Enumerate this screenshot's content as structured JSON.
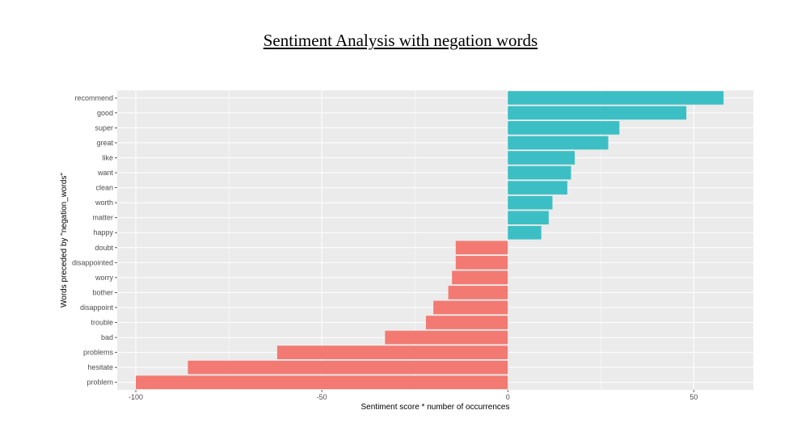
{
  "title": "Sentiment Analysis with negation words",
  "chart_data": {
    "type": "bar",
    "orientation": "horizontal",
    "title": "Sentiment Analysis with negation words",
    "xlabel": "Sentiment score * number of occurrences",
    "ylabel": "Words preceded by \"negation_words\"",
    "xlim": [
      -105,
      66
    ],
    "xticks": [
      -100,
      -50,
      0,
      50
    ],
    "xtick_labels": [
      "-100",
      "-50",
      "0",
      "50"
    ],
    "grid": true,
    "legend": "none",
    "categories": [
      "recommend",
      "good",
      "super",
      "great",
      "like",
      "want",
      "clean",
      "worth",
      "matter",
      "happy",
      "doubt",
      "disappointed",
      "worry",
      "bother",
      "disappoint",
      "trouble",
      "bad",
      "problems",
      "hesitate",
      "problem"
    ],
    "values": [
      58,
      48,
      30,
      27,
      18,
      17,
      16,
      12,
      11,
      9,
      -14,
      -14,
      -15,
      -16,
      -20,
      -22,
      -33,
      -62,
      -86,
      -100
    ],
    "colors": {
      "positive": "#3cbfc4",
      "negative": "#f27a72",
      "panel": "#ebebeb",
      "grid": "#ffffff"
    }
  }
}
